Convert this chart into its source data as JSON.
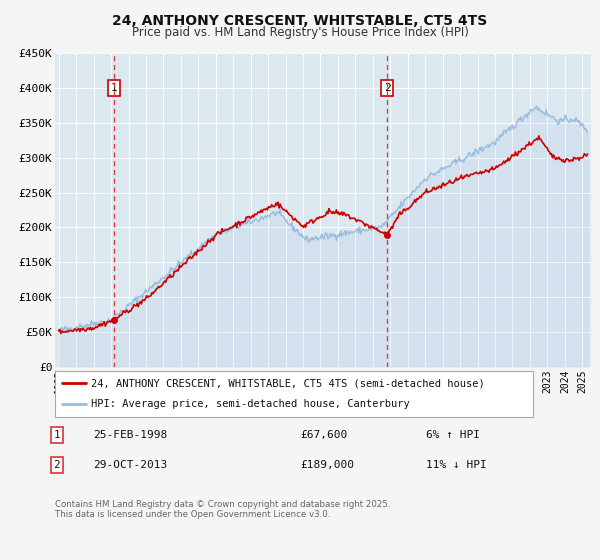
{
  "title": "24, ANTHONY CRESCENT, WHITSTABLE, CT5 4TS",
  "subtitle": "Price paid vs. HM Land Registry's House Price Index (HPI)",
  "bg_color": "#f5f5f5",
  "plot_bg_color": "#dce8f0",
  "grid_color": "#ffffff",
  "red_line_color": "#cc0000",
  "blue_line_color": "#99bbdd",
  "marker1_date_idx": 1998.15,
  "marker1_value": 67600,
  "marker1_label": "1",
  "marker1_date_str": "25-FEB-1998",
  "marker1_price_str": "£67,600",
  "marker1_hpi_str": "6% ↑ HPI",
  "marker2_date_idx": 2013.83,
  "marker2_value": 189000,
  "marker2_label": "2",
  "marker2_date_str": "29-OCT-2013",
  "marker2_price_str": "£189,000",
  "marker2_hpi_str": "11% ↓ HPI",
  "vline_color": "#dd3333",
  "legend_label_red": "24, ANTHONY CRESCENT, WHITSTABLE, CT5 4TS (semi-detached house)",
  "legend_label_blue": "HPI: Average price, semi-detached house, Canterbury",
  "footer": "Contains HM Land Registry data © Crown copyright and database right 2025.\nThis data is licensed under the Open Government Licence v3.0.",
  "ylim": [
    0,
    450000
  ],
  "xlim_start": 1994.8,
  "xlim_end": 2025.5
}
